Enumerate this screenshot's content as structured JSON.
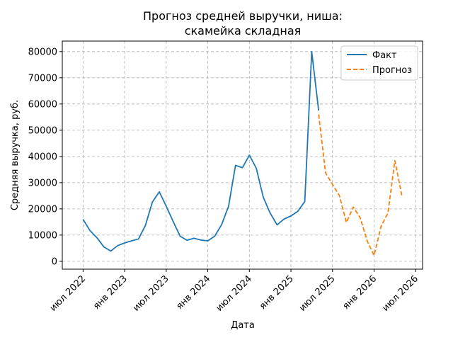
{
  "chart_data": {
    "type": "line",
    "title_lines": [
      "Прогноз средней выручки, ниша:",
      "скамейка складная"
    ],
    "xlabel": "Дата",
    "ylabel": "Средняя выручка, руб.",
    "ylim": [
      -3000,
      84000
    ],
    "yticks": [
      0,
      10000,
      20000,
      30000,
      40000,
      50000,
      60000,
      70000,
      80000
    ],
    "xlim": [
      "2022-04",
      "2026-08"
    ],
    "xticks": [
      {
        "date": "2022-07",
        "label": "июл 2022"
      },
      {
        "date": "2023-01",
        "label": "янв 2023"
      },
      {
        "date": "2023-07",
        "label": "июл 2023"
      },
      {
        "date": "2024-01",
        "label": "янв 2024"
      },
      {
        "date": "2024-07",
        "label": "июл 2024"
      },
      {
        "date": "2025-01",
        "label": "янв 2025"
      },
      {
        "date": "2025-07",
        "label": "июл 2025"
      },
      {
        "date": "2026-01",
        "label": "янв 2026"
      },
      {
        "date": "2026-07",
        "label": "июл 2026"
      }
    ],
    "grid": true,
    "legend_position": "top-right",
    "series": [
      {
        "name": "Факт",
        "color": "#1f77b4",
        "style": "solid",
        "points": [
          [
            "2022-07",
            16000
          ],
          [
            "2022-08",
            11700
          ],
          [
            "2022-09",
            9000
          ],
          [
            "2022-10",
            5500
          ],
          [
            "2022-11",
            3900
          ],
          [
            "2022-12",
            6000
          ],
          [
            "2023-01",
            7000
          ],
          [
            "2023-02",
            7800
          ],
          [
            "2023-03",
            8500
          ],
          [
            "2023-04",
            13700
          ],
          [
            "2023-05",
            22600
          ],
          [
            "2023-06",
            26500
          ],
          [
            "2023-07",
            21000
          ],
          [
            "2023-08",
            15200
          ],
          [
            "2023-09",
            9600
          ],
          [
            "2023-10",
            8000
          ],
          [
            "2023-11",
            8800
          ],
          [
            "2023-12",
            8100
          ],
          [
            "2024-01",
            7800
          ],
          [
            "2024-02",
            9600
          ],
          [
            "2024-03",
            14000
          ],
          [
            "2024-04",
            21000
          ],
          [
            "2024-05",
            36600
          ],
          [
            "2024-06",
            35700
          ],
          [
            "2024-07",
            40500
          ],
          [
            "2024-08",
            35500
          ],
          [
            "2024-09",
            24500
          ],
          [
            "2024-10",
            18400
          ],
          [
            "2024-11",
            13900
          ],
          [
            "2024-12",
            16100
          ],
          [
            "2025-01",
            17300
          ],
          [
            "2025-02",
            19100
          ],
          [
            "2025-03",
            22800
          ],
          [
            "2025-04",
            80000
          ],
          [
            "2025-05",
            57500
          ]
        ]
      },
      {
        "name": "Прогноз",
        "color": "#ff7f0e",
        "style": "dashed",
        "points": [
          [
            "2025-05",
            56000
          ],
          [
            "2025-06",
            33700
          ],
          [
            "2025-07",
            29300
          ],
          [
            "2025-08",
            25000
          ],
          [
            "2025-09",
            14800
          ],
          [
            "2025-10",
            20700
          ],
          [
            "2025-11",
            16600
          ],
          [
            "2025-12",
            7800
          ],
          [
            "2026-01",
            2200
          ],
          [
            "2026-02",
            13300
          ],
          [
            "2026-03",
            18400
          ],
          [
            "2026-04",
            38400
          ],
          [
            "2026-05",
            25200
          ]
        ]
      }
    ]
  }
}
